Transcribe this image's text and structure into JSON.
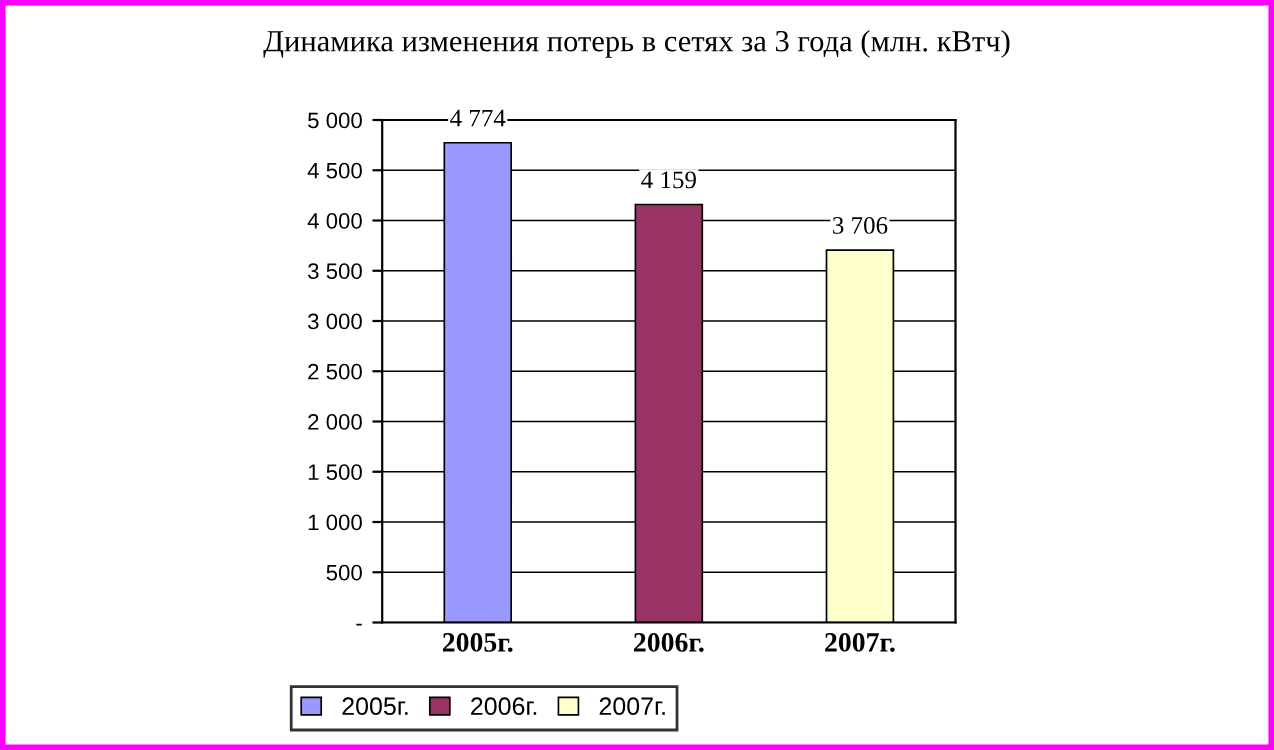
{
  "chart_data": {
    "type": "bar",
    "title": "Динамика изменения потерь в сетях за 3 года (млн. кВтч)",
    "categories": [
      "2005г.",
      "2006г.",
      "2007г."
    ],
    "series": [
      {
        "name": "2005г.",
        "color": "#9999ff",
        "values": [
          4774,
          null,
          null
        ],
        "value_labels": [
          "4 774",
          null,
          null
        ]
      },
      {
        "name": "2006г.",
        "color": "#993366",
        "values": [
          null,
          4159,
          null
        ],
        "value_labels": [
          null,
          "4 159",
          null
        ]
      },
      {
        "name": "2007г.",
        "color": "#ffffcc",
        "values": [
          null,
          null,
          3706
        ],
        "value_labels": [
          null,
          null,
          "3 706"
        ]
      }
    ],
    "stacked": true,
    "ylim": [
      0,
      5000
    ],
    "yticks": [
      {
        "value": 0,
        "label": "-"
      },
      500,
      {
        "value": 1000,
        "label": "1 000"
      },
      {
        "value": 1500,
        "label": "1 500"
      },
      {
        "value": 2000,
        "label": "2 000"
      },
      {
        "value": 2500,
        "label": "2 500"
      },
      {
        "value": 3000,
        "label": "3 000"
      },
      {
        "value": 3500,
        "label": "3 500"
      },
      {
        "value": 4000,
        "label": "4 000"
      },
      {
        "value": 4500,
        "label": "4 500"
      },
      {
        "value": 5000,
        "label": "5 000"
      }
    ],
    "grid": "y",
    "legend": "bottom"
  }
}
